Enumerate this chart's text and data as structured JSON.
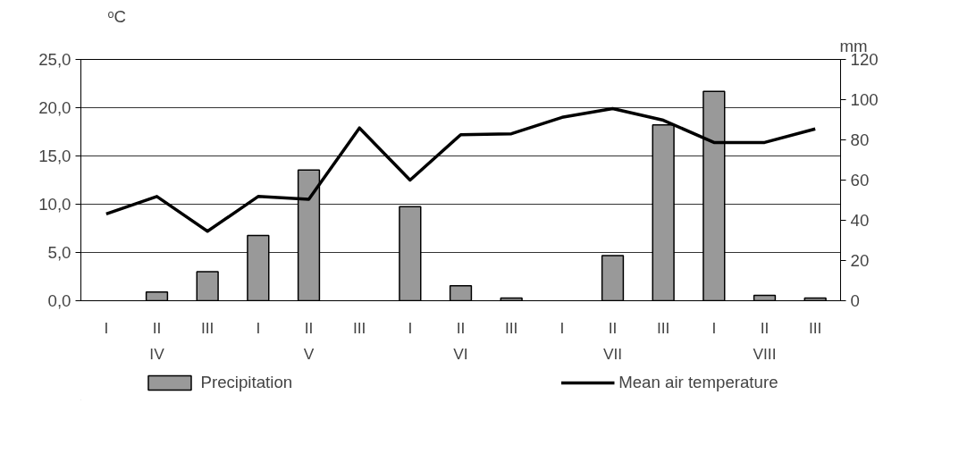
{
  "chart_data": {
    "type": "bar",
    "ylabel": "ᵒC",
    "y2label": "mm",
    "categories": [
      "I",
      "II",
      "III",
      "I",
      "II",
      "III",
      "I",
      "II",
      "III",
      "I",
      "II",
      "III",
      "I",
      "II",
      "III"
    ],
    "annotations": [
      "IV",
      "V",
      "VI",
      "VII",
      "VIII"
    ],
    "series": [
      {
        "name": "Precipitation",
        "axis": "y2",
        "color": "#999999",
        "values": [
          0,
          4.3,
          14.4,
          32.5,
          65,
          0,
          46.8,
          7.4,
          1.3,
          0,
          22.4,
          87.4,
          104.1,
          2.7,
          1.3
        ]
      },
      {
        "name": "Mean air temperature",
        "type": "line",
        "color": "#000000",
        "values": [
          9.0,
          10.8,
          7.2,
          10.8,
          10.5,
          17.9,
          12.5,
          17.2,
          17.3,
          19.0,
          19.9,
          18.7,
          16.4,
          16.4,
          17.8
        ]
      }
    ],
    "ylim": [
      0,
      25
    ],
    "yticks": [
      {
        "value": 0,
        "label": "0,0"
      },
      {
        "value": 5,
        "label": "5,0"
      },
      {
        "value": 10,
        "label": "10,0"
      },
      {
        "value": 15,
        "label": "15,0"
      },
      {
        "value": 20,
        "label": "20,0"
      },
      {
        "value": 25,
        "label": "25,0"
      }
    ],
    "y2lim": [
      0,
      120
    ],
    "y2ticks": [
      0,
      20,
      40,
      60,
      80,
      100,
      120
    ],
    "grid": "y",
    "legend": "bottom",
    "line_style": "solid",
    "marker": "none"
  }
}
